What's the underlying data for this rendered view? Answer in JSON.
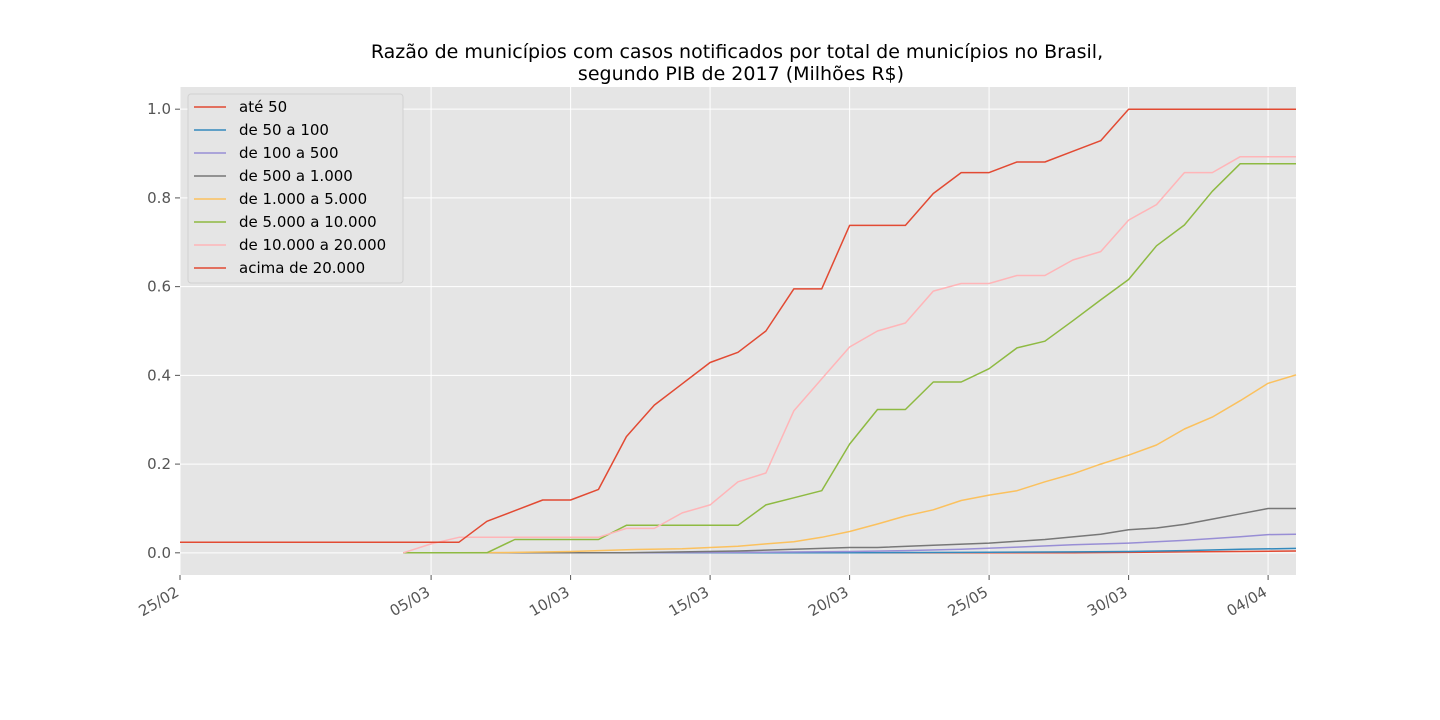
{
  "chart_data": {
    "type": "line",
    "title": "Razão de municípios com casos notificados por total de municípios no Brasil,",
    "subtitle": "segundo PIB de 2017 (Milhões R$)",
    "xlabel": "",
    "ylabel": "",
    "ylim": [
      -0.05,
      1.05
    ],
    "xlim": [
      0,
      40
    ],
    "yticks": [
      0.0,
      0.2,
      0.4,
      0.6,
      0.8,
      1.0
    ],
    "ytick_labels": [
      "0.0",
      "0.2",
      "0.4",
      "0.6",
      "0.8",
      "1.0"
    ],
    "xticks": [
      {
        "pos": 0,
        "label": "25/02"
      },
      {
        "pos": 9,
        "label": "05/03"
      },
      {
        "pos": 14,
        "label": "10/03"
      },
      {
        "pos": 19,
        "label": "15/03"
      },
      {
        "pos": 24,
        "label": "20/03"
      },
      {
        "pos": 29,
        "label": "25/05"
      },
      {
        "pos": 34,
        "label": "30/03"
      },
      {
        "pos": 39,
        "label": "04/04"
      }
    ],
    "grid": true,
    "legend_position": "top-left",
    "series": [
      {
        "name": "até 50",
        "color": "#e24a33",
        "x": [
          8,
          10,
          12,
          14,
          16,
          18,
          20,
          22,
          24,
          26,
          28,
          30,
          32,
          34,
          36,
          38,
          40
        ],
        "y": [
          0.0,
          0.0,
          0.0,
          0.0,
          0.0,
          0.0,
          0.0,
          0.0,
          0.0,
          0.0,
          0.0,
          0.0,
          0.0,
          0.001,
          0.002,
          0.003,
          0.004
        ]
      },
      {
        "name": "de 50 a 100",
        "color": "#348abd",
        "x": [
          8,
          12,
          16,
          20,
          24,
          28,
          32,
          34,
          36,
          38,
          40
        ],
        "y": [
          0.0,
          0.0,
          0.0,
          0.0,
          0.0,
          0.001,
          0.002,
          0.003,
          0.005,
          0.008,
          0.01
        ]
      },
      {
        "name": "de 100 a 500",
        "color": "#988ed5",
        "x": [
          8,
          12,
          16,
          20,
          24,
          26,
          28,
          30,
          32,
          34,
          36,
          38,
          39,
          40
        ],
        "y": [
          0.0,
          0.0,
          0.0,
          0.001,
          0.003,
          0.005,
          0.008,
          0.013,
          0.018,
          0.022,
          0.028,
          0.036,
          0.041,
          0.042
        ]
      },
      {
        "name": "de 500 a 1.000",
        "color": "#777777",
        "x": [
          8,
          12,
          16,
          18,
          20,
          22,
          24,
          25,
          27,
          29,
          31,
          33,
          34,
          35,
          36,
          37,
          38,
          39,
          40
        ],
        "y": [
          0.0,
          0.0,
          0.0,
          0.002,
          0.004,
          0.008,
          0.012,
          0.012,
          0.017,
          0.022,
          0.03,
          0.042,
          0.052,
          0.056,
          0.064,
          0.076,
          0.088,
          0.1,
          0.1
        ]
      },
      {
        "name": "de 1.000 a 5.000",
        "color": "#fbc15e",
        "x": [
          8,
          10,
          12,
          14,
          16,
          18,
          19,
          20,
          21,
          22,
          23,
          24,
          25,
          26,
          27,
          28,
          29,
          30,
          31,
          32,
          33,
          34,
          35,
          36,
          37,
          38,
          39,
          40
        ],
        "y": [
          0.0,
          0.0,
          0.001,
          0.003,
          0.007,
          0.009,
          0.012,
          0.015,
          0.02,
          0.025,
          0.035,
          0.048,
          0.065,
          0.083,
          0.097,
          0.118,
          0.13,
          0.14,
          0.16,
          0.178,
          0.2,
          0.22,
          0.243,
          0.279,
          0.306,
          0.343,
          0.382,
          0.401
        ]
      },
      {
        "name": "de 5.000 a 10.000",
        "color": "#8eba42",
        "x": [
          8,
          10,
          11,
          12,
          13,
          14,
          15,
          16,
          17,
          18,
          19,
          20,
          21,
          22,
          23,
          24,
          25,
          26,
          27,
          28,
          29,
          30,
          31,
          32,
          33,
          34,
          35,
          36,
          37,
          38,
          39,
          40
        ],
        "y": [
          0.0,
          0.0,
          0.0,
          0.03,
          0.03,
          0.03,
          0.03,
          0.062,
          0.062,
          0.062,
          0.062,
          0.062,
          0.108,
          0.124,
          0.14,
          0.245,
          0.323,
          0.323,
          0.385,
          0.385,
          0.415,
          0.462,
          0.477,
          0.523,
          0.57,
          0.616,
          0.692,
          0.739,
          0.815,
          0.877,
          0.877,
          0.877
        ]
      },
      {
        "name": "de 10.000 a 20.000",
        "color": "#ffb5b8",
        "x": [
          8,
          9,
          10,
          11,
          12,
          13,
          14,
          15,
          16,
          17,
          18,
          19,
          20,
          21,
          22,
          23,
          24,
          25,
          26,
          27,
          28,
          29,
          30,
          31,
          32,
          33,
          34,
          35,
          36,
          37,
          38,
          39,
          40
        ],
        "y": [
          0.0,
          0.02,
          0.035,
          0.035,
          0.035,
          0.035,
          0.035,
          0.035,
          0.055,
          0.055,
          0.09,
          0.108,
          0.16,
          0.18,
          0.32,
          0.392,
          0.464,
          0.5,
          0.518,
          0.59,
          0.607,
          0.607,
          0.625,
          0.625,
          0.66,
          0.679,
          0.75,
          0.785,
          0.857,
          0.857,
          0.893,
          0.893,
          0.893
        ]
      },
      {
        "name": "acima de 20.000",
        "color": "#e24a33",
        "x": [
          0,
          1,
          2,
          3,
          4,
          5,
          6,
          7,
          8,
          9,
          10,
          11,
          12,
          13,
          14,
          15,
          16,
          17,
          18,
          19,
          20,
          21,
          22,
          23,
          24,
          25,
          26,
          27,
          28,
          29,
          30,
          31,
          32,
          33,
          34,
          35,
          36,
          37,
          38,
          39,
          40
        ],
        "y": [
          0.024,
          0.024,
          0.024,
          0.024,
          0.024,
          0.024,
          0.024,
          0.024,
          0.024,
          0.024,
          0.024,
          0.071,
          0.095,
          0.119,
          0.119,
          0.143,
          0.262,
          0.333,
          0.381,
          0.429,
          0.452,
          0.5,
          0.595,
          0.595,
          0.738,
          0.738,
          0.738,
          0.81,
          0.857,
          0.857,
          0.881,
          0.881,
          0.905,
          0.929,
          1.0,
          1.0,
          1.0,
          1.0,
          1.0,
          1.0,
          1.0
        ]
      }
    ]
  }
}
